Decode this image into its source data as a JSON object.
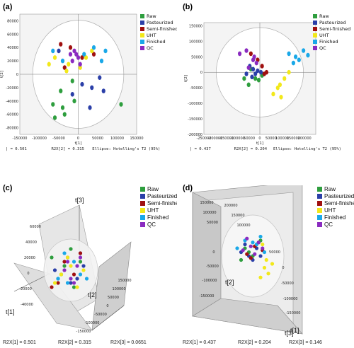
{
  "colors": {
    "Raw": "#2e9e3e",
    "Pasteurized": "#2b3fa8",
    "Semi-finished": "#a01010",
    "UHT": "#f2e81a",
    "Finished": "#1aa8e8",
    "QC": "#8a2bc0"
  },
  "legend_labels": [
    "Raw",
    "Pasteurized",
    "Semi-finished",
    "UHT",
    "Finished",
    "QC"
  ],
  "chart_data": [
    {
      "panel": "(a)",
      "type": "scatter",
      "xlabel": "t[1]",
      "ylabel": "t[2]",
      "xlim": [
        -150000,
        150000
      ],
      "ylim": [
        -90000,
        90000
      ],
      "xticks": [
        "-150000",
        "-100000",
        "-50000",
        "0",
        "50000",
        "100000",
        "150000"
      ],
      "yticks": [
        "80000",
        "60000",
        "40000",
        "20000",
        "0",
        "-20000",
        "-40000",
        "-60000",
        "-80000"
      ],
      "footer": [
        "| = 0.501",
        "R2X[2] = 0.315",
        "Ellipse: Hotelling's T2 (95%)"
      ],
      "series": [
        {
          "name": "Raw",
          "x": [
            -65000,
            -60000,
            -40000,
            -45000,
            -15000,
            -35000,
            -10000,
            110000
          ],
          "y": [
            -45000,
            -65000,
            -50000,
            -25000,
            -10000,
            -60000,
            -40000,
            -45000
          ]
        },
        {
          "name": "Pasteurized",
          "x": [
            -15000,
            10000,
            35000,
            55000,
            65000,
            30000,
            -50000
          ],
          "y": [
            -30000,
            -15000,
            -20000,
            -5000,
            -25000,
            -50000,
            35000
          ]
        },
        {
          "name": "Semi-finished",
          "x": [
            -45000,
            -20000,
            10000,
            40000,
            -35000
          ],
          "y": [
            45000,
            40000,
            25000,
            30000,
            10000
          ]
        },
        {
          "name": "UHT",
          "x": [
            -75000,
            -60000,
            -25000,
            5000,
            20000,
            35000,
            -30000
          ],
          "y": [
            15000,
            25000,
            15000,
            10000,
            25000,
            35000,
            5000
          ]
        },
        {
          "name": "Finished",
          "x": [
            -65000,
            -40000,
            15000,
            40000,
            70000,
            60000
          ],
          "y": [
            35000,
            20000,
            30000,
            40000,
            35000,
            20000
          ]
        },
        {
          "name": "QC",
          "x": [
            -10000,
            -5000,
            0,
            -15000,
            5000,
            -20000
          ],
          "y": [
            35000,
            30000,
            25000,
            20000,
            15000,
            30000
          ]
        }
      ]
    },
    {
      "panel": "(b)",
      "type": "scatter",
      "xlabel": "t[1]",
      "ylabel": "t[2]",
      "xlim": [
        -250000,
        250000
      ],
      "ylim": [
        -200000,
        160000
      ],
      "xticks": [
        "-250000",
        "-200000",
        "-150000",
        "-100000",
        "-50000",
        "0",
        "50000",
        "100000",
        "150000",
        "200000"
      ],
      "yticks": [
        "150000",
        "100000",
        "50000",
        "0",
        "-50000",
        "-100000",
        "-150000",
        "-200000"
      ],
      "footer": [
        "| = 0.437",
        "R2X[2] = 0.204",
        "Ellipse: Hotelling's T2 (95%)"
      ],
      "series": [
        {
          "name": "Raw",
          "x": [
            -70000,
            -40000,
            -20000,
            -50000,
            10000,
            -5000
          ],
          "y": [
            -20000,
            10000,
            -20000,
            -40000,
            -10000,
            -25000
          ]
        },
        {
          "name": "Pasteurized",
          "x": [
            -45000,
            -30000,
            -20000,
            5000,
            -10000,
            -60000,
            -35000
          ],
          "y": [
            20000,
            10000,
            -5000,
            0,
            5000,
            -5000,
            -15000
          ]
        },
        {
          "name": "Semi-finished",
          "x": [
            -10000,
            10000,
            30000,
            -40000,
            20000
          ],
          "y": [
            40000,
            20000,
            0,
            60000,
            -5000
          ]
        },
        {
          "name": "UHT",
          "x": [
            60000,
            80000,
            90000,
            110000,
            130000,
            95000
          ],
          "y": [
            -70000,
            -50000,
            -40000,
            -20000,
            0,
            -80000
          ]
        },
        {
          "name": "Finished",
          "x": [
            130000,
            150000,
            160000,
            175000,
            195000,
            215000
          ],
          "y": [
            60000,
            30000,
            50000,
            40000,
            70000,
            55000
          ]
        },
        {
          "name": "QC",
          "x": [
            -90000,
            -60000,
            -30000,
            -15000,
            -25000,
            -50000
          ],
          "y": [
            60000,
            70000,
            40000,
            30000,
            50000,
            15000
          ]
        }
      ]
    },
    {
      "panel": "(c)",
      "type": "scatter",
      "axes": [
        "t[1]",
        "t[2]",
        "t[3]"
      ],
      "footer": [
        "R2X[1] = 0.501",
        "R2X[2] = 0.315",
        "R2X[3] = 0.0651"
      ],
      "axis_ticks": [
        "-40000",
        "-20000",
        "0",
        "20000",
        "40000",
        "60000",
        "-150000",
        "-100000",
        "-50000",
        "0",
        "50000",
        "100000",
        "150000"
      ],
      "series": [
        {
          "name": "Raw",
          "x": [
            -60,
            -40,
            -20,
            10,
            30,
            -30,
            0
          ],
          "y": [
            -30,
            20,
            -10,
            40,
            -20,
            10,
            -50
          ]
        },
        {
          "name": "Pasteurized",
          "x": [
            -50,
            -10,
            20,
            40,
            0,
            30
          ],
          "y": [
            0,
            -30,
            20,
            -10,
            30,
            -40
          ]
        },
        {
          "name": "Semi-finished",
          "x": [
            -20,
            10,
            -40,
            30,
            -60
          ],
          "y": [
            -20,
            10,
            30,
            -40,
            40
          ]
        },
        {
          "name": "UHT",
          "x": [
            -30,
            0,
            20,
            -10,
            40,
            -50
          ],
          "y": [
            10,
            -10,
            40,
            -30,
            0,
            30
          ]
        },
        {
          "name": "Finished",
          "x": [
            -40,
            -10,
            10,
            30,
            -20,
            50
          ],
          "y": [
            20,
            30,
            -20,
            10,
            -40,
            20
          ]
        },
        {
          "name": "QC",
          "x": [
            -20,
            0,
            20,
            -10,
            10,
            30
          ],
          "y": [
            0,
            20,
            -10,
            -20,
            30,
            -30
          ]
        }
      ]
    },
    {
      "panel": "(d)",
      "type": "scatter",
      "axes": [
        "t[1]",
        "t[2]",
        "t[3]"
      ],
      "footer": [
        "R2X[1] = 0.437",
        "R2X[2] = 0.204",
        "R2X[3] = 0.146"
      ],
      "axis_ticks": [
        "150000",
        "100000",
        "50000",
        "0",
        "-50000",
        "-100000",
        "-150000",
        "200000",
        "150000",
        "100000",
        "50000",
        "0",
        "-50000",
        "-100000",
        "-150000"
      ],
      "series": [
        {
          "name": "Raw",
          "x": [
            -20,
            -10,
            0,
            10,
            -30,
            20
          ],
          "y": [
            -20,
            -10,
            0,
            -30,
            10,
            -40
          ]
        },
        {
          "name": "Pasteurized",
          "x": [
            -30,
            -10,
            10,
            0,
            -20,
            20
          ],
          "y": [
            -10,
            0,
            -20,
            10,
            -30,
            0
          ]
        },
        {
          "name": "Semi-finished",
          "x": [
            -15,
            5,
            25,
            -5,
            15
          ],
          "y": [
            -5,
            -25,
            -15,
            5,
            -35
          ]
        },
        {
          "name": "UHT",
          "x": [
            30,
            40,
            50,
            20,
            35,
            25
          ],
          "y": [
            30,
            45,
            20,
            55,
            10,
            -30
          ]
        },
        {
          "name": "Finished",
          "x": [
            10,
            30,
            -20,
            -40,
            20,
            0
          ],
          "y": [
            -30,
            -10,
            -40,
            -20,
            -50,
            -35
          ]
        },
        {
          "name": "QC",
          "x": [
            -25,
            -5,
            15,
            5,
            -15,
            25
          ],
          "y": [
            -15,
            -25,
            -35,
            -5,
            -45,
            -20
          ]
        }
      ]
    }
  ]
}
